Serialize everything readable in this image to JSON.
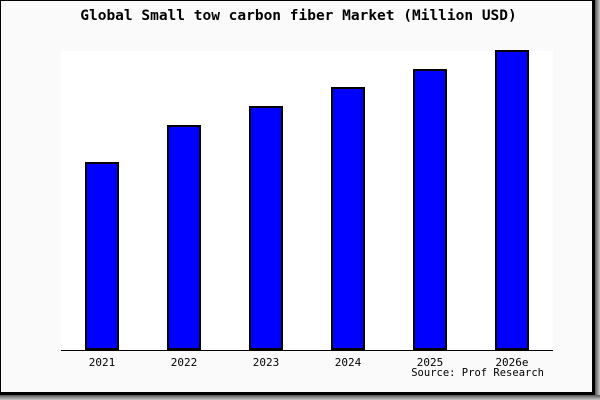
{
  "chart_data": {
    "type": "bar",
    "title": "Global Small tow carbon fiber Market (Million USD)",
    "categories": [
      "2021",
      "2022",
      "2023",
      "2024",
      "2025",
      "2026e"
    ],
    "values_relative_pct_of_max": [
      62.7,
      75.0,
      81.3,
      87.7,
      93.7,
      100.0
    ],
    "xlabel": "",
    "ylabel": "",
    "y_axis_shown": false,
    "grid": false,
    "legend": "none",
    "source_note": "Source: Prof Research",
    "bar_color": "#0000ff",
    "bar_border_color": "#000000",
    "plot_background": "#ffffff",
    "card_background": "#fafafa",
    "frame_color": "#000000"
  }
}
